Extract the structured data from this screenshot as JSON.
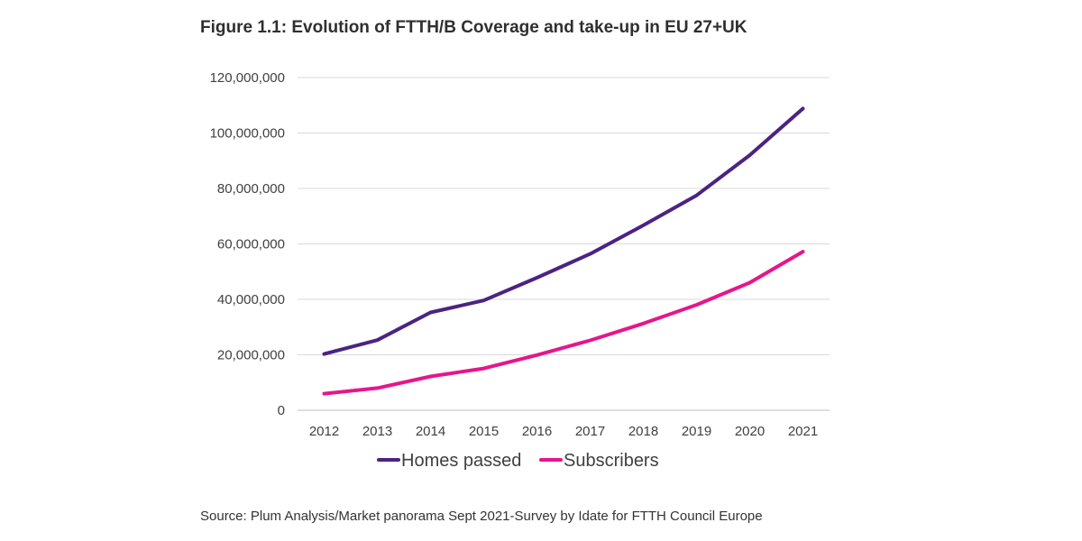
{
  "figure": {
    "title": "Figure 1.1: Evolution of FTTH/B Coverage and take-up in EU 27+UK",
    "source": "Source: Plum Analysis/Market panorama Sept 2021-Survey by Idate for FTTH Council Europe"
  },
  "chart_data": {
    "type": "line",
    "title": "Figure 1.1: Evolution of FTTH/B Coverage and take-up in EU 27+UK",
    "xlabel": "",
    "ylabel": "",
    "x": [
      "2012",
      "2013",
      "2014",
      "2015",
      "2016",
      "2017",
      "2018",
      "2019",
      "2020",
      "2021"
    ],
    "ylim": [
      0,
      120000000
    ],
    "yticks": [
      0,
      20000000,
      40000000,
      60000000,
      80000000,
      100000000,
      120000000
    ],
    "ytick_labels": [
      "0",
      "20,000,000",
      "40,000,000",
      "60,000,000",
      "80,000,000",
      "100,000,000",
      "120,000,000"
    ],
    "grid": "horizontal",
    "legend_position": "bottom",
    "series": [
      {
        "name": "Homes passed",
        "color": "#4b2383",
        "values": [
          20300000,
          25300000,
          35300000,
          39600000,
          47800000,
          56400000,
          66700000,
          77500000,
          92000000,
          108800000
        ]
      },
      {
        "name": "Subscribers",
        "color": "#e6168c",
        "values": [
          6000000,
          8000000,
          12200000,
          15100000,
          19900000,
          25200000,
          31300000,
          38000000,
          46000000,
          57200000
        ]
      }
    ]
  }
}
